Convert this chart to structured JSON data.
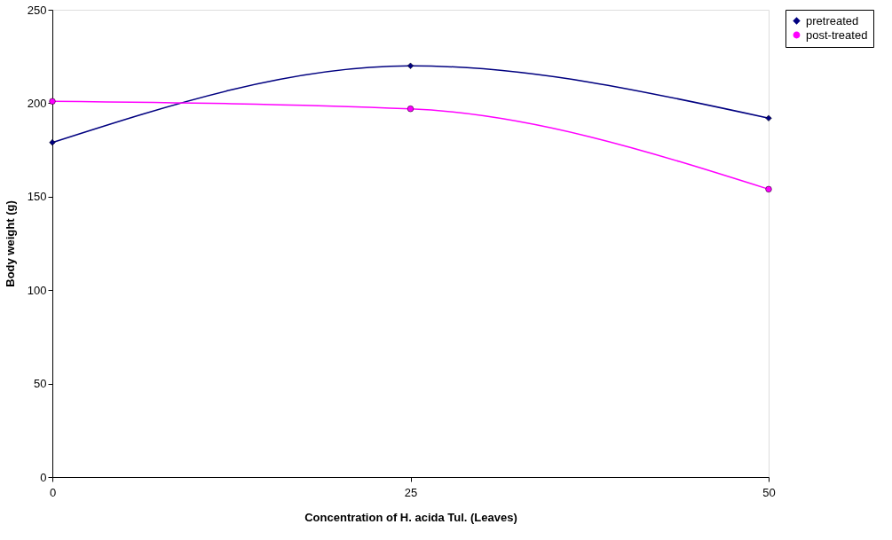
{
  "chart_data": {
    "type": "line",
    "xlabel": "Concentration of H. acida Tul.  (Leaves)",
    "ylabel": "Body weight (g)",
    "x": [
      0,
      25,
      50
    ],
    "series": [
      {
        "name": "pretreated",
        "color": "#000080",
        "marker": "diamond",
        "values": [
          179,
          220,
          192
        ]
      },
      {
        "name": "post-treated",
        "color": "#ff00ff",
        "marker": "circle",
        "values": [
          201,
          197,
          154
        ]
      }
    ],
    "xlim": [
      0,
      50
    ],
    "xticks": [
      0,
      25,
      50
    ],
    "ylim": [
      0,
      250
    ],
    "yticks": [
      0,
      50,
      100,
      150,
      200,
      250
    ],
    "grid": false,
    "legend": "right",
    "line_style": "solid"
  }
}
